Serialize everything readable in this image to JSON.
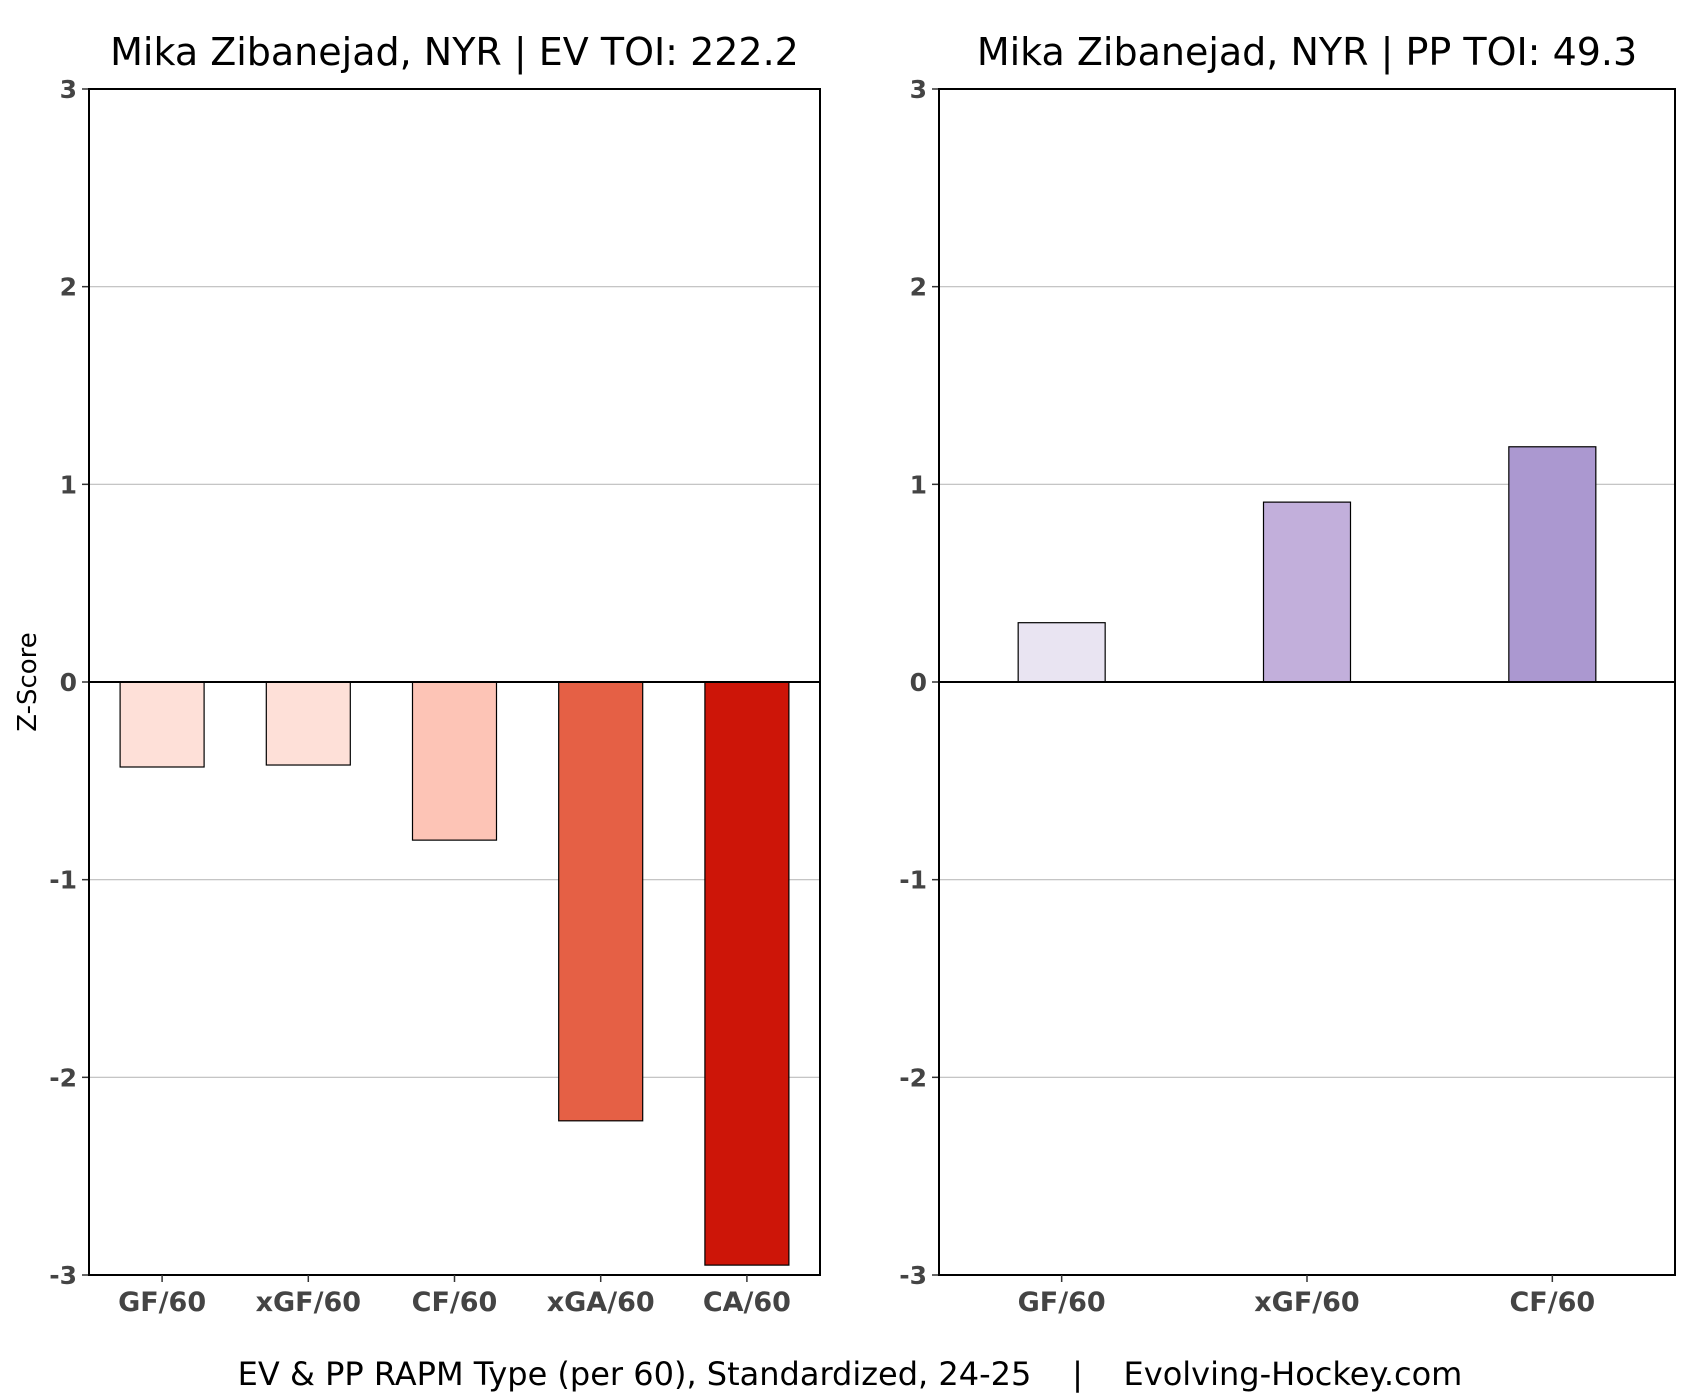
{
  "chart_data": [
    {
      "type": "bar",
      "title": "Mika Zibanejad, NYR  |  EV TOI: 222.2",
      "ylabel": "Z-Score",
      "ylim": [
        -3,
        3
      ],
      "yticks": [
        3,
        2,
        1,
        0,
        -1,
        -2,
        -3
      ],
      "grid": true,
      "categories": [
        "GF/60",
        "xGF/60",
        "CF/60",
        "xGA/60",
        "CA/60"
      ],
      "values": [
        -0.43,
        -0.42,
        -0.8,
        -2.22,
        -2.95
      ],
      "colors": [
        "#fee0d8",
        "#fee0d8",
        "#fdc4b6",
        "#e56045",
        "#cd1508"
      ]
    },
    {
      "type": "bar",
      "title": "Mika Zibanejad, NYR  |  PP TOI: 49.3",
      "ylim": [
        -3,
        3
      ],
      "yticks": [
        3,
        2,
        1,
        0,
        -1,
        -2,
        -3
      ],
      "grid": true,
      "categories": [
        "GF/60",
        "xGF/60",
        "CF/60"
      ],
      "values": [
        0.3,
        0.91,
        1.19
      ],
      "colors": [
        "#e9e4f2",
        "#c2afdb",
        "#ab98d0"
      ]
    }
  ],
  "caption": "EV & PP RAPM Type (per 60), Standardized, 24-25    |    Evolving-Hockey.com"
}
